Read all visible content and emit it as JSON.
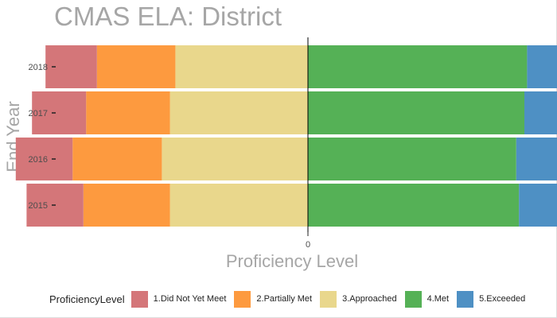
{
  "chart_data": {
    "type": "bar",
    "orientation": "horizontal-diverging",
    "title": "CMAS ELA: District",
    "xlabel": "Proficiency Level",
    "ylabel": "End Year",
    "x_ticks": [
      "0"
    ],
    "categories": [
      "2015",
      "2016",
      "2017",
      "2018"
    ],
    "legend_title": "ProficiencyLevel",
    "legend_position": "bottom",
    "grid": false,
    "series": [
      {
        "name": "1.Did Not Yet Meet",
        "color": "#d47679",
        "side": "negative",
        "values": [
          -0.21,
          -0.21,
          -0.2,
          -0.19
        ]
      },
      {
        "name": "2.Partially Met",
        "color": "#fd9a3f",
        "side": "negative",
        "values": [
          -0.32,
          -0.33,
          -0.31,
          -0.29
        ]
      },
      {
        "name": "3.Approached",
        "color": "#e9d78c",
        "side": "negative",
        "values": [
          -0.51,
          -0.54,
          -0.51,
          -0.49
        ]
      },
      {
        "name": "4.Met",
        "color": "#55b156",
        "side": "positive",
        "values": [
          0.78,
          0.77,
          0.8,
          0.81
        ]
      },
      {
        "name": "5.Exceeded",
        "color": "#4e90c4",
        "side": "positive",
        "values": [
          0.2,
          0.17,
          0.2,
          0.22
        ]
      }
    ]
  }
}
